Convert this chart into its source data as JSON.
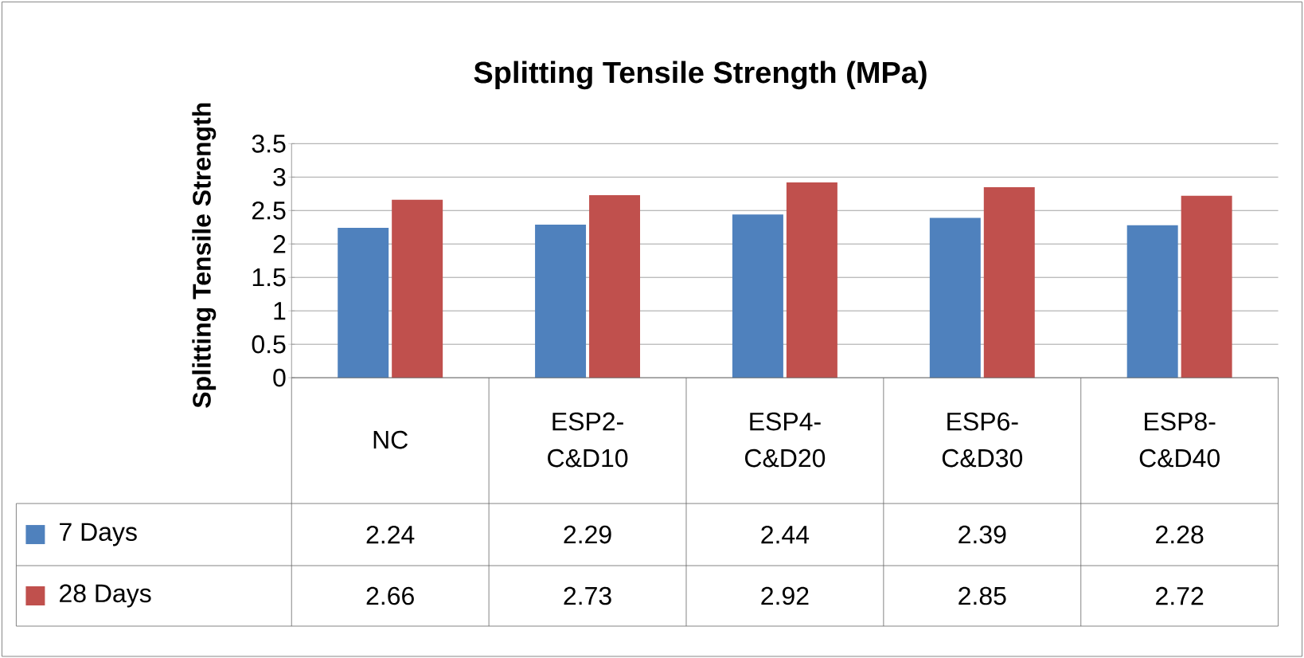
{
  "chart_data": {
    "type": "bar",
    "title": "Splitting Tensile Strength (MPa)",
    "ylabel": "Splitting Tensile Strength",
    "categories": [
      "NC",
      "ESP2-C&D10",
      "ESP4-C&D20",
      "ESP6-C&D30",
      "ESP8-C&D40"
    ],
    "series": [
      {
        "name": "7 Days",
        "color": "#4f81bd",
        "values": [
          2.24,
          2.29,
          2.44,
          2.39,
          2.28
        ]
      },
      {
        "name": "28 Days",
        "color": "#c0504d",
        "values": [
          2.66,
          2.73,
          2.92,
          2.85,
          2.72
        ]
      }
    ],
    "ylim": [
      0,
      3.5
    ],
    "yticks": [
      0,
      0.5,
      1,
      1.5,
      2,
      2.5,
      3,
      3.5
    ],
    "grid": "y",
    "legend": "bottom",
    "data_labels": true
  }
}
